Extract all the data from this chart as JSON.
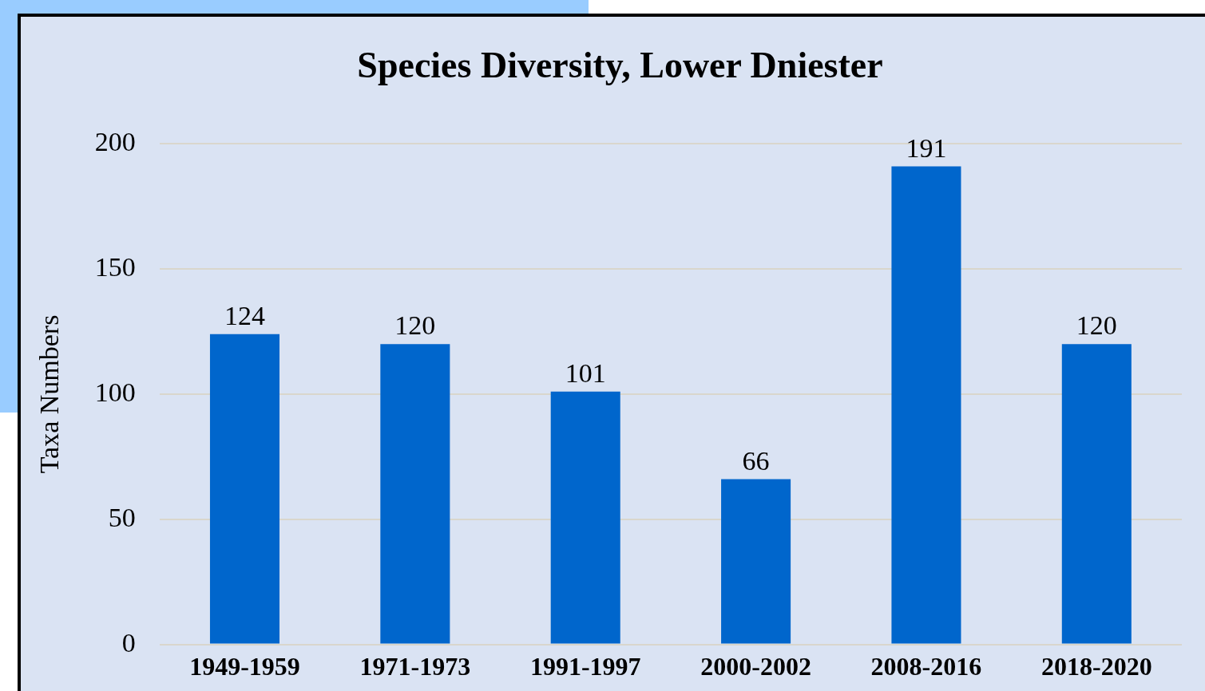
{
  "chart_data": {
    "type": "bar",
    "title": "Species Diversity, Lower Dniester",
    "ylabel": "Taxa Numbers",
    "categories": [
      "1949-1959",
      "1971-1973",
      "1991-1997",
      "2000-2002",
      "2008-2016",
      "2018-2020"
    ],
    "values": [
      124,
      120,
      101,
      66,
      191,
      120
    ],
    "color": "#0066cc",
    "ylim": [
      0,
      200
    ],
    "yticks": [
      0,
      50,
      100,
      150,
      200
    ],
    "grid": "y",
    "data_labels": true,
    "legend": false
  }
}
